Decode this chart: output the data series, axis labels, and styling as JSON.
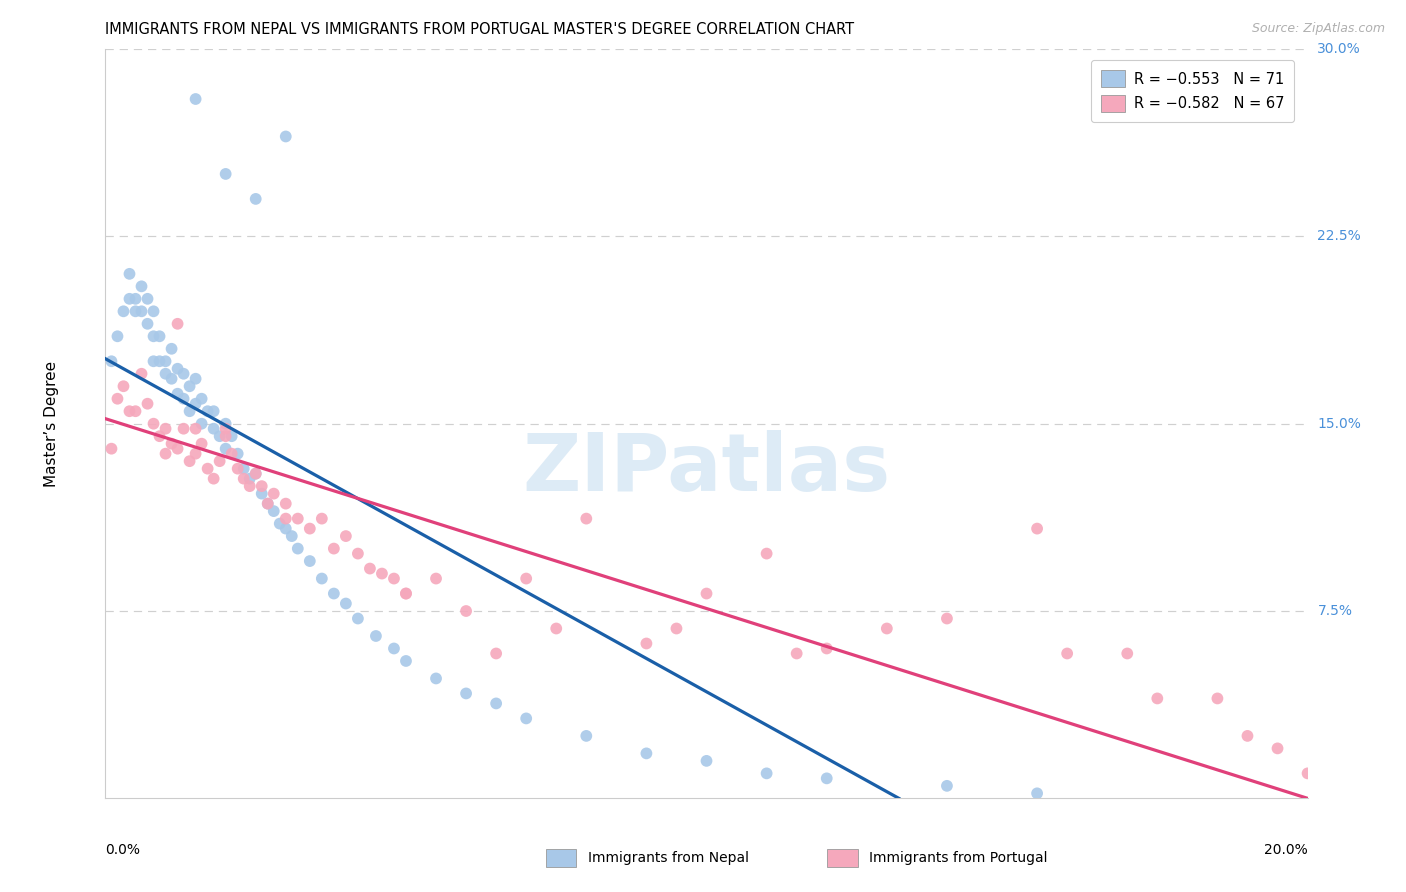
{
  "title": "IMMIGRANTS FROM NEPAL VS IMMIGRANTS FROM PORTUGAL MASTER'S DEGREE CORRELATION CHART",
  "source": "Source: ZipAtlas.com",
  "ylabel": "Master’s Degree",
  "right_yticks": [
    "30.0%",
    "22.5%",
    "15.0%",
    "7.5%"
  ],
  "right_ytick_vals": [
    0.3,
    0.225,
    0.15,
    0.075
  ],
  "legend_nepal": "R = −0.553   N = 71",
  "legend_portugal": "R = −0.582   N = 67",
  "nepal_color": "#a8c8e8",
  "portugal_color": "#f5a8bc",
  "nepal_line_color": "#1a5fa8",
  "portugal_line_color": "#e0407a",
  "watermark": "ZIPatlas",
  "xmin": 0.0,
  "xmax": 0.2,
  "ymin": 0.0,
  "ymax": 0.3,
  "nepal_scatter_x": [
    0.001,
    0.002,
    0.003,
    0.004,
    0.004,
    0.005,
    0.005,
    0.006,
    0.006,
    0.007,
    0.007,
    0.008,
    0.008,
    0.008,
    0.009,
    0.009,
    0.01,
    0.01,
    0.011,
    0.011,
    0.012,
    0.012,
    0.013,
    0.013,
    0.014,
    0.014,
    0.015,
    0.015,
    0.016,
    0.016,
    0.017,
    0.018,
    0.018,
    0.019,
    0.02,
    0.02,
    0.021,
    0.022,
    0.023,
    0.024,
    0.025,
    0.026,
    0.027,
    0.028,
    0.029,
    0.03,
    0.031,
    0.032,
    0.034,
    0.036,
    0.038,
    0.04,
    0.042,
    0.045,
    0.048,
    0.05,
    0.055,
    0.06,
    0.065,
    0.07,
    0.08,
    0.09,
    0.1,
    0.11,
    0.12,
    0.14,
    0.155,
    0.015,
    0.02,
    0.025,
    0.03
  ],
  "nepal_scatter_y": [
    0.175,
    0.185,
    0.195,
    0.21,
    0.2,
    0.2,
    0.195,
    0.205,
    0.195,
    0.2,
    0.19,
    0.195,
    0.185,
    0.175,
    0.185,
    0.175,
    0.175,
    0.17,
    0.18,
    0.168,
    0.172,
    0.162,
    0.17,
    0.16,
    0.165,
    0.155,
    0.168,
    0.158,
    0.16,
    0.15,
    0.155,
    0.155,
    0.148,
    0.145,
    0.15,
    0.14,
    0.145,
    0.138,
    0.132,
    0.128,
    0.13,
    0.122,
    0.118,
    0.115,
    0.11,
    0.108,
    0.105,
    0.1,
    0.095,
    0.088,
    0.082,
    0.078,
    0.072,
    0.065,
    0.06,
    0.055,
    0.048,
    0.042,
    0.038,
    0.032,
    0.025,
    0.018,
    0.015,
    0.01,
    0.008,
    0.005,
    0.002,
    0.28,
    0.25,
    0.24,
    0.265
  ],
  "portugal_scatter_x": [
    0.001,
    0.002,
    0.003,
    0.004,
    0.005,
    0.006,
    0.007,
    0.008,
    0.009,
    0.01,
    0.01,
    0.011,
    0.012,
    0.013,
    0.014,
    0.015,
    0.015,
    0.016,
    0.017,
    0.018,
    0.019,
    0.02,
    0.021,
    0.022,
    0.023,
    0.024,
    0.025,
    0.026,
    0.027,
    0.028,
    0.03,
    0.032,
    0.034,
    0.036,
    0.038,
    0.04,
    0.042,
    0.044,
    0.046,
    0.048,
    0.05,
    0.055,
    0.06,
    0.065,
    0.07,
    0.075,
    0.08,
    0.09,
    0.095,
    0.1,
    0.11,
    0.115,
    0.12,
    0.13,
    0.14,
    0.155,
    0.16,
    0.17,
    0.175,
    0.185,
    0.19,
    0.195,
    0.2,
    0.012,
    0.02,
    0.03,
    0.05
  ],
  "portugal_scatter_y": [
    0.14,
    0.16,
    0.165,
    0.155,
    0.155,
    0.17,
    0.158,
    0.15,
    0.145,
    0.148,
    0.138,
    0.142,
    0.14,
    0.148,
    0.135,
    0.148,
    0.138,
    0.142,
    0.132,
    0.128,
    0.135,
    0.145,
    0.138,
    0.132,
    0.128,
    0.125,
    0.13,
    0.125,
    0.118,
    0.122,
    0.118,
    0.112,
    0.108,
    0.112,
    0.1,
    0.105,
    0.098,
    0.092,
    0.09,
    0.088,
    0.082,
    0.088,
    0.075,
    0.058,
    0.088,
    0.068,
    0.112,
    0.062,
    0.068,
    0.082,
    0.098,
    0.058,
    0.06,
    0.068,
    0.072,
    0.108,
    0.058,
    0.058,
    0.04,
    0.04,
    0.025,
    0.02,
    0.01,
    0.19,
    0.148,
    0.112,
    0.082
  ],
  "nepal_trend_x0": 0.0,
  "nepal_trend_y0": 0.176,
  "nepal_trend_x1": 0.132,
  "nepal_trend_y1": 0.0,
  "portugal_trend_x0": 0.0,
  "portugal_trend_y0": 0.152,
  "portugal_trend_x1": 0.2,
  "portugal_trend_y1": 0.0
}
